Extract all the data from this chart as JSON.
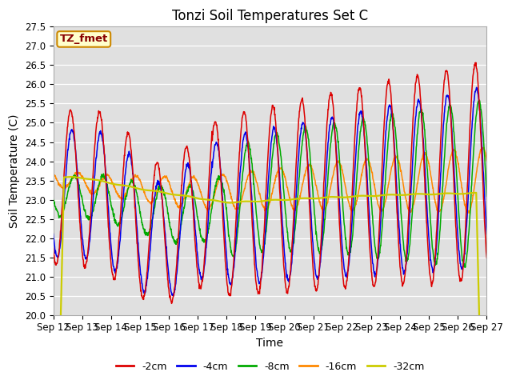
{
  "title": "Tonzi Soil Temperatures Set C",
  "xlabel": "Time",
  "ylabel": "Soil Temperature (C)",
  "ylim": [
    20.0,
    27.5
  ],
  "yticks": [
    20.0,
    20.5,
    21.0,
    21.5,
    22.0,
    22.5,
    23.0,
    23.5,
    24.0,
    24.5,
    25.0,
    25.5,
    26.0,
    26.5,
    27.0,
    27.5
  ],
  "series_colors": [
    "#dd0000",
    "#0000ee",
    "#00aa00",
    "#ff8800",
    "#cccc00"
  ],
  "series_labels": [
    "-2cm",
    "-4cm",
    "-8cm",
    "-16cm",
    "-32cm"
  ],
  "annotation_text": "TZ_fmet",
  "annotation_bg": "#ffffcc",
  "annotation_border": "#cc8800",
  "annotation_text_color": "#880000",
  "plot_bg_color": "#e0e0e0",
  "n_days": 15,
  "start_day": 12,
  "title_fontsize": 12,
  "label_fontsize": 10,
  "tick_fontsize": 8.5
}
